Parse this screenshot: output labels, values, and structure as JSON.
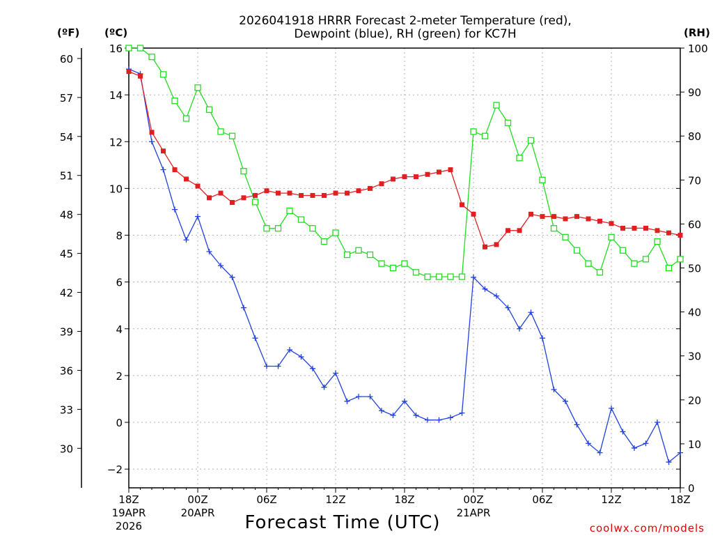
{
  "chart_data": {
    "type": "line",
    "title_lines": [
      "2026041918 HRRR Forecast 2-meter Temperature (red),",
      "Dewpoint (blue), RH (green) for KC7H"
    ],
    "xlabel": "Forecast Time (UTC)",
    "credit": "coolwx.com/models",
    "left_unit_f": "(ºF)",
    "left_unit_c": "(ºC)",
    "right_unit": "(RH)",
    "ylim_c": [
      -2.8,
      16
    ],
    "ylim_rh": [
      0,
      100
    ],
    "xlim_hours": [
      0,
      48
    ],
    "celsius_ticks": [
      "16",
      "14",
      "12",
      "10",
      "8",
      "6",
      "4",
      "2",
      "0",
      "−2"
    ],
    "fahrenheit_ticks": [
      "60",
      "57",
      "54",
      "51",
      "48",
      "45",
      "42",
      "39",
      "36",
      "33",
      "30"
    ],
    "rh_ticks": [
      "100",
      "90",
      "80",
      "70",
      "60",
      "50",
      "40",
      "30",
      "20",
      "10",
      "0"
    ],
    "x_ticks": [
      {
        "label": "18Z",
        "sub1": "19APR",
        "sub2": "2026"
      },
      {
        "label": "00Z",
        "sub1": "20APR",
        "sub2": ""
      },
      {
        "label": "06Z",
        "sub1": "",
        "sub2": ""
      },
      {
        "label": "12Z",
        "sub1": "",
        "sub2": ""
      },
      {
        "label": "18Z",
        "sub1": "",
        "sub2": ""
      },
      {
        "label": "00Z",
        "sub1": "21APR",
        "sub2": ""
      },
      {
        "label": "06Z",
        "sub1": "",
        "sub2": ""
      },
      {
        "label": "12Z",
        "sub1": "",
        "sub2": ""
      },
      {
        "label": "18Z",
        "sub1": "",
        "sub2": ""
      }
    ],
    "series": [
      {
        "name": "Temperature",
        "units": "C",
        "color": "#e02020",
        "marker": "filled-square",
        "values": [
          15.0,
          14.8,
          12.4,
          11.6,
          10.8,
          10.4,
          10.1,
          9.6,
          9.8,
          9.4,
          9.6,
          9.7,
          9.9,
          9.8,
          9.8,
          9.7,
          9.7,
          9.7,
          9.8,
          9.8,
          9.9,
          10.0,
          10.2,
          10.4,
          10.5,
          10.5,
          10.6,
          10.7,
          10.8,
          9.3,
          8.9,
          7.5,
          7.6,
          8.2,
          8.2,
          8.9,
          8.8,
          8.8,
          8.7,
          8.8,
          8.7,
          8.6,
          8.5,
          8.3,
          8.3,
          8.3,
          8.2,
          8.1,
          8.0
        ]
      },
      {
        "name": "Dewpoint",
        "units": "C",
        "color": "#2040e0",
        "marker": "plus",
        "values": [
          15.1,
          14.9,
          12.0,
          10.8,
          9.1,
          7.8,
          8.8,
          7.3,
          6.7,
          6.2,
          4.9,
          3.6,
          2.4,
          2.4,
          3.1,
          2.8,
          2.3,
          1.5,
          2.1,
          0.9,
          1.1,
          1.1,
          0.5,
          0.3,
          0.9,
          0.3,
          0.1,
          0.1,
          0.2,
          0.4,
          6.2,
          5.7,
          5.4,
          4.9,
          4.0,
          4.7,
          3.6,
          1.4,
          0.9,
          -0.1,
          -0.9,
          -1.3,
          0.6,
          -0.4,
          -1.1,
          -0.9,
          0.0,
          -1.7,
          -1.3
        ]
      },
      {
        "name": "Relative Humidity",
        "units": "%",
        "color": "#20dd20",
        "marker": "open-square",
        "values": [
          100,
          100,
          98,
          94,
          88,
          84,
          91,
          86,
          81,
          80,
          72,
          65,
          59,
          59,
          63,
          61,
          59,
          56,
          58,
          53,
          54,
          53,
          51,
          50,
          51,
          49,
          48,
          48,
          48,
          48,
          81,
          80,
          87,
          83,
          75,
          79,
          70,
          59,
          57,
          54,
          51,
          49,
          57,
          54,
          51,
          52,
          56,
          50,
          52
        ]
      }
    ]
  }
}
